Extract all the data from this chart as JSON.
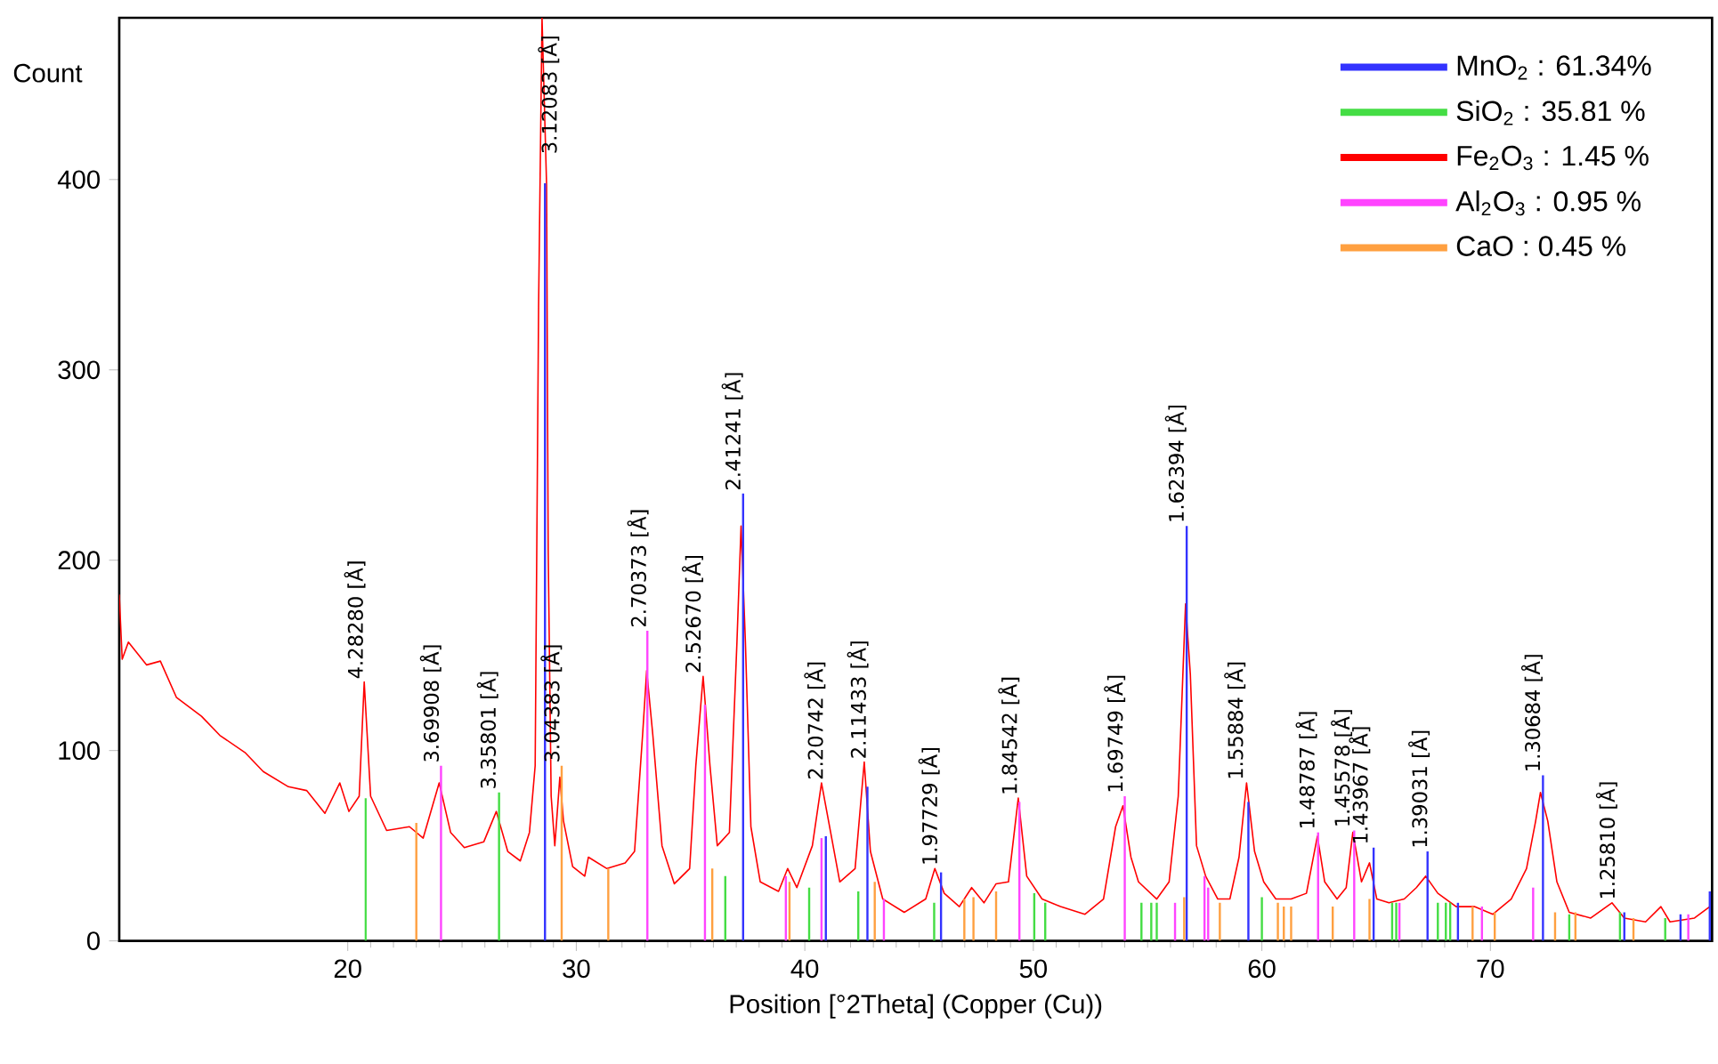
{
  "chart_data": {
    "type": "line",
    "xlabel": "Position [°2Theta] (Copper (Cu))",
    "ylabel": "Count",
    "xlim": [
      10,
      79.7
    ],
    "ylim": [
      0,
      485
    ],
    "xticks": [
      20,
      30,
      40,
      50,
      60,
      70
    ],
    "yticks": [
      0,
      100,
      200,
      300,
      400
    ],
    "legend": "top right",
    "series": [
      {
        "color": "#ff0000",
        "x": [
          10.0,
          10.13,
          10.4,
          11.2,
          11.8,
          12.5,
          13.6,
          14.4,
          15.5,
          16.3,
          17.4,
          18.2,
          19.0,
          19.65,
          20.05,
          20.5,
          20.72,
          21.0,
          21.7,
          22.7,
          23.3,
          24.0,
          24.5,
          25.1,
          25.95,
          26.5,
          27.0,
          27.55,
          27.95,
          28.2,
          28.35,
          28.5,
          28.7,
          28.77,
          28.9,
          29.06,
          29.28,
          29.44,
          29.84,
          30.37,
          30.53,
          31.34,
          32.14,
          32.55,
          32.9,
          33.08,
          33.35,
          33.75,
          34.29,
          34.96,
          35.23,
          35.55,
          35.85,
          36.17,
          36.7,
          37.03,
          37.21,
          37.4,
          37.64,
          38.05,
          38.85,
          39.25,
          39.65,
          40.33,
          40.73,
          41.13,
          41.53,
          42.2,
          42.6,
          42.87,
          43.41,
          44.35,
          45.29,
          45.69,
          46.1,
          46.76,
          47.3,
          47.84,
          48.37,
          48.91,
          49.34,
          49.71,
          50.38,
          51.19,
          52.26,
          53.07,
          53.6,
          53.92,
          54.27,
          54.6,
          55.4,
          55.94,
          56.34,
          56.66,
          56.87,
          57.14,
          57.54,
          58.07,
          58.6,
          59.0,
          59.33,
          59.68,
          60.08,
          60.61,
          61.28,
          61.95,
          62.43,
          62.75,
          63.29,
          63.69,
          63.98,
          64.36,
          64.71,
          65.03,
          65.56,
          66.23,
          66.76,
          67.17,
          67.7,
          68.5,
          69.3,
          70.11,
          70.91,
          71.58,
          71.98,
          72.19,
          72.51,
          72.91,
          73.45,
          74.39,
          75.32,
          75.86,
          76.79,
          77.46,
          77.86,
          78.93,
          79.6
        ],
        "values": [
          182,
          148,
          157,
          145,
          147,
          128,
          118,
          108,
          99,
          89,
          81,
          79,
          67,
          83,
          68,
          76,
          136,
          76,
          58,
          60,
          54,
          83,
          57,
          49,
          52,
          68,
          47,
          42,
          57,
          92,
          333,
          485,
          397,
          205,
          76,
          50,
          86,
          63,
          39,
          34,
          44,
          38,
          41,
          47,
          108,
          142,
          108,
          50,
          30,
          38,
          92,
          139,
          92,
          50,
          57,
          157,
          218,
          157,
          60,
          31,
          26,
          38,
          28,
          50,
          83,
          57,
          31,
          38,
          94,
          47,
          22,
          15,
          22,
          38,
          25,
          18,
          28,
          20,
          30,
          31,
          75,
          34,
          22,
          18,
          14,
          22,
          60,
          71,
          44,
          31,
          22,
          31,
          76,
          177,
          140,
          50,
          34,
          22,
          22,
          44,
          83,
          47,
          31,
          22,
          22,
          25,
          55,
          31,
          22,
          28,
          57,
          31,
          41,
          22,
          20,
          22,
          28,
          34,
          25,
          18,
          18,
          14,
          22,
          38,
          63,
          78,
          63,
          31,
          15,
          12,
          20,
          12,
          10,
          18,
          10,
          12,
          18
        ]
      },
      {
        "type": "bar",
        "name": "MnO$_{2}$ : 61.34%",
        "color": "#3333ff",
        "x": [
          28.63,
          37.3,
          40.92,
          42.74,
          45.96,
          56.71,
          59.41,
          64.89,
          67.25,
          68.58,
          72.3,
          75.86,
          78.32,
          79.6
        ],
        "values": [
          398,
          235,
          55,
          81,
          36,
          218,
          73,
          49,
          47,
          20,
          87,
          15,
          14,
          26
        ]
      },
      {
        "type": "bar",
        "name": "SiO$_{2}$ : 35.81 %",
        "color": "#44dd44",
        "x": [
          20.78,
          26.62,
          36.52,
          40.19,
          42.34,
          45.66,
          50.04,
          50.52,
          54.73,
          55.16,
          55.4,
          60.0,
          64.0,
          65.7,
          65.88,
          67.7,
          68.05,
          68.24,
          73.45,
          75.67,
          77.65
        ],
        "values": [
          75,
          78,
          34,
          28,
          26,
          20,
          25,
          20,
          20,
          20,
          20,
          23,
          null,
          20,
          20,
          20,
          20,
          20,
          14,
          15,
          12
        ]
      },
      {
        "type": "bar",
        "name": "Fe$_{2}$O$_{3}$ : 1.45 %",
        "color": "#ff0000"
      },
      {
        "type": "bar",
        "name": "Al$_{2}$O$_{3}$ : 0.95 %",
        "color": "#ff44ff",
        "x": [
          24.08,
          33.11,
          35.63,
          39.17,
          40.73,
          43.46,
          49.39,
          54.0,
          56.2,
          57.49,
          57.65,
          62.46,
          64.04,
          66.02,
          69.63,
          71.87,
          78.66
        ],
        "values": [
          92,
          163,
          124,
          34,
          54,
          22,
          73,
          76,
          20,
          34,
          28,
          57,
          58,
          20,
          18,
          28,
          14
        ]
      },
      {
        "type": "bar",
        "name": "CaO : 0.45 %",
        "color": "#ffa040",
        "x": [
          23.0,
          29.36,
          31.4,
          35.95,
          39.33,
          43.06,
          46.98,
          47.38,
          48.37,
          56.6,
          58.16,
          60.7,
          60.96,
          61.28,
          63.1,
          64.71,
          69.22,
          70.19,
          72.83,
          73.72,
          76.26
        ],
        "values": [
          62,
          92,
          38,
          38,
          31,
          31,
          22,
          23,
          26,
          23,
          20,
          20,
          18,
          18,
          18,
          22,
          18,
          15,
          15,
          15,
          12
        ]
      }
    ],
    "annotations": [
      {
        "text": "4.28280 [Å]",
        "x": 20.72,
        "y": 136
      },
      {
        "text": "3.69908 [Å]",
        "x": 24.04,
        "y": 92
      },
      {
        "text": "3.35801 [Å]",
        "x": 26.53,
        "y": 78
      },
      {
        "text": "3.12083 [Å]",
        "x": 28.58,
        "y": 485
      },
      {
        "text": "3.04383 [Å]",
        "x": 29.32,
        "y": 92
      },
      {
        "text": "2.70373 [Å]",
        "x": 33.11,
        "y": 163
      },
      {
        "text": "2.52670 [Å]",
        "x": 35.5,
        "y": 139
      },
      {
        "text": "2.41241 [Å]",
        "x": 37.24,
        "y": 235
      },
      {
        "text": "2.20742 [Å]",
        "x": 40.85,
        "y": 83
      },
      {
        "text": "2.11433 [Å]",
        "x": 42.73,
        "y": 94
      },
      {
        "text": "1.97729 [Å]",
        "x": 45.85,
        "y": 38
      },
      {
        "text": "1.84542 [Å]",
        "x": 49.34,
        "y": 75
      },
      {
        "text": "1.69749 [Å]",
        "x": 53.97,
        "y": 76
      },
      {
        "text": "1.62394 [Å]",
        "x": 56.64,
        "y": 218
      },
      {
        "text": "1.55884 [Å]",
        "x": 59.23,
        "y": 83
      },
      {
        "text": "1.48787 [Å]",
        "x": 62.36,
        "y": 57
      },
      {
        "text": "1.45578 [Å]",
        "x": 63.9,
        "y": 58
      },
      {
        "text": "1.43967 [Å]",
        "x": 64.69,
        "y": 49
      },
      {
        "text": "1.39031 [Å]",
        "x": 67.29,
        "y": 47
      },
      {
        "text": "1.30684 [Å]",
        "x": 72.23,
        "y": 87
      },
      {
        "text": "1.25810 [Å]",
        "x": 75.5,
        "y": 20
      }
    ]
  }
}
